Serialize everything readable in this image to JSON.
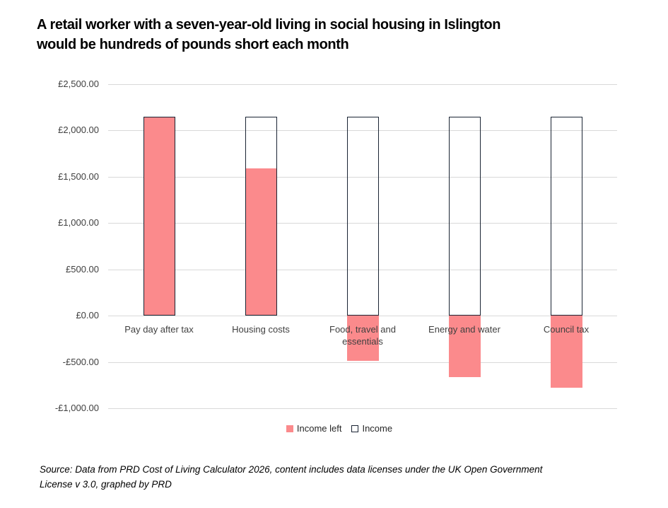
{
  "title": {
    "lines": [
      "A retail worker with a seven-year-old living in social housing in Islington",
      "would be hundreds of pounds short each month"
    ]
  },
  "source": {
    "lines": [
      "Source: Data from PRD Cost of Living Calculator 2026, content includes data licenses under the UK Open Government",
      "License v 3.0, graphed by PRD"
    ]
  },
  "legend": {
    "items": [
      {
        "label": "Income left",
        "swatch": "pink-filled-square"
      },
      {
        "label": "Income",
        "swatch": "white-outlined-square"
      }
    ]
  },
  "colors": {
    "income_left_fill": "#fb8a8c",
    "income_outline": "#1a2433",
    "gridline": "#d9d9d9",
    "axis_text": "#404040",
    "title_text": "#000000"
  },
  "chart_data": {
    "type": "bar",
    "title": "A retail worker with a seven-year-old living in social housing in Islington would be hundreds of pounds short each month",
    "categories": [
      "Pay day after tax",
      "Housing costs",
      "Food, travel and essentials",
      "Energy and water",
      "Council tax"
    ],
    "series": [
      {
        "name": "Income left",
        "values": [
          2150,
          1590,
          -490,
          -660,
          -780
        ],
        "fill": "#fb8a8c",
        "border": "none"
      },
      {
        "name": "Income",
        "values": [
          2150,
          2150,
          2150,
          2150,
          2150
        ],
        "fill": "none",
        "border": "#1a2433"
      }
    ],
    "ylim": [
      -1000,
      2500
    ],
    "ytick_step": 500,
    "ytick_labels": [
      "£2,500.00",
      "£2,000.00",
      "£1,500.00",
      "£1,000.00",
      "£500.00",
      "£0.00",
      "-£500.00",
      "-£1,000.00"
    ],
    "y_format": "currency-GBP",
    "grid": true,
    "legend_position": "bottom",
    "bar_overlap_percent": 100
  }
}
